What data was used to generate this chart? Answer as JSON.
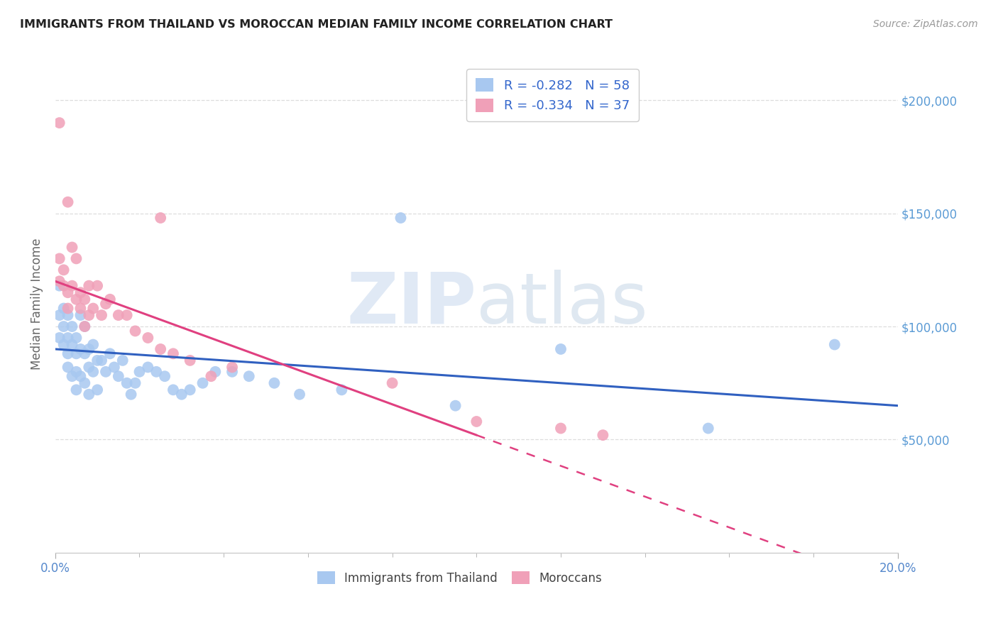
{
  "title": "IMMIGRANTS FROM THAILAND VS MOROCCAN MEDIAN FAMILY INCOME CORRELATION CHART",
  "source": "Source: ZipAtlas.com",
  "ylabel": "Median Family Income",
  "right_yticks": [
    "$200,000",
    "$150,000",
    "$100,000",
    "$50,000"
  ],
  "right_ytick_vals": [
    200000,
    150000,
    100000,
    50000
  ],
  "legend1_label": "R = -0.282   N = 58",
  "legend2_label": "R = -0.334   N = 37",
  "legend_bottom1": "Immigrants from Thailand",
  "legend_bottom2": "Moroccans",
  "blue_color": "#a8c8f0",
  "pink_color": "#f0a0b8",
  "blue_line_color": "#3060c0",
  "pink_line_color": "#e04080",
  "watermark_zip": "ZIP",
  "watermark_atlas": "atlas",
  "xlim": [
    0.0,
    0.2
  ],
  "ylim": [
    0,
    220000
  ],
  "thailand_x": [
    0.001,
    0.001,
    0.001,
    0.002,
    0.002,
    0.002,
    0.003,
    0.003,
    0.003,
    0.003,
    0.004,
    0.004,
    0.004,
    0.005,
    0.005,
    0.005,
    0.005,
    0.006,
    0.006,
    0.006,
    0.007,
    0.007,
    0.007,
    0.008,
    0.008,
    0.008,
    0.009,
    0.009,
    0.01,
    0.01,
    0.011,
    0.012,
    0.013,
    0.014,
    0.015,
    0.016,
    0.017,
    0.018,
    0.019,
    0.02,
    0.022,
    0.024,
    0.026,
    0.028,
    0.03,
    0.032,
    0.035,
    0.038,
    0.042,
    0.046,
    0.052,
    0.058,
    0.068,
    0.082,
    0.095,
    0.12,
    0.155,
    0.185
  ],
  "thailand_y": [
    118000,
    105000,
    95000,
    108000,
    100000,
    92000,
    95000,
    88000,
    105000,
    82000,
    100000,
    92000,
    78000,
    95000,
    88000,
    80000,
    72000,
    105000,
    90000,
    78000,
    100000,
    88000,
    75000,
    90000,
    82000,
    70000,
    92000,
    80000,
    85000,
    72000,
    85000,
    80000,
    88000,
    82000,
    78000,
    85000,
    75000,
    70000,
    75000,
    80000,
    82000,
    80000,
    78000,
    72000,
    70000,
    72000,
    75000,
    80000,
    80000,
    78000,
    75000,
    70000,
    72000,
    148000,
    65000,
    90000,
    55000,
    92000
  ],
  "morocco_x": [
    0.001,
    0.001,
    0.002,
    0.002,
    0.003,
    0.003,
    0.004,
    0.004,
    0.005,
    0.005,
    0.006,
    0.006,
    0.007,
    0.007,
    0.008,
    0.008,
    0.009,
    0.01,
    0.011,
    0.012,
    0.013,
    0.015,
    0.017,
    0.019,
    0.022,
    0.025,
    0.028,
    0.032,
    0.037,
    0.042,
    0.001,
    0.003,
    0.025,
    0.08,
    0.1,
    0.12,
    0.13
  ],
  "morocco_y": [
    120000,
    130000,
    125000,
    118000,
    115000,
    108000,
    135000,
    118000,
    130000,
    112000,
    115000,
    108000,
    112000,
    100000,
    118000,
    105000,
    108000,
    118000,
    105000,
    110000,
    112000,
    105000,
    105000,
    98000,
    95000,
    90000,
    88000,
    85000,
    78000,
    82000,
    190000,
    155000,
    148000,
    75000,
    58000,
    55000,
    52000
  ],
  "blue_R": -0.282,
  "pink_R": -0.334,
  "blue_N": 58,
  "pink_N": 37
}
